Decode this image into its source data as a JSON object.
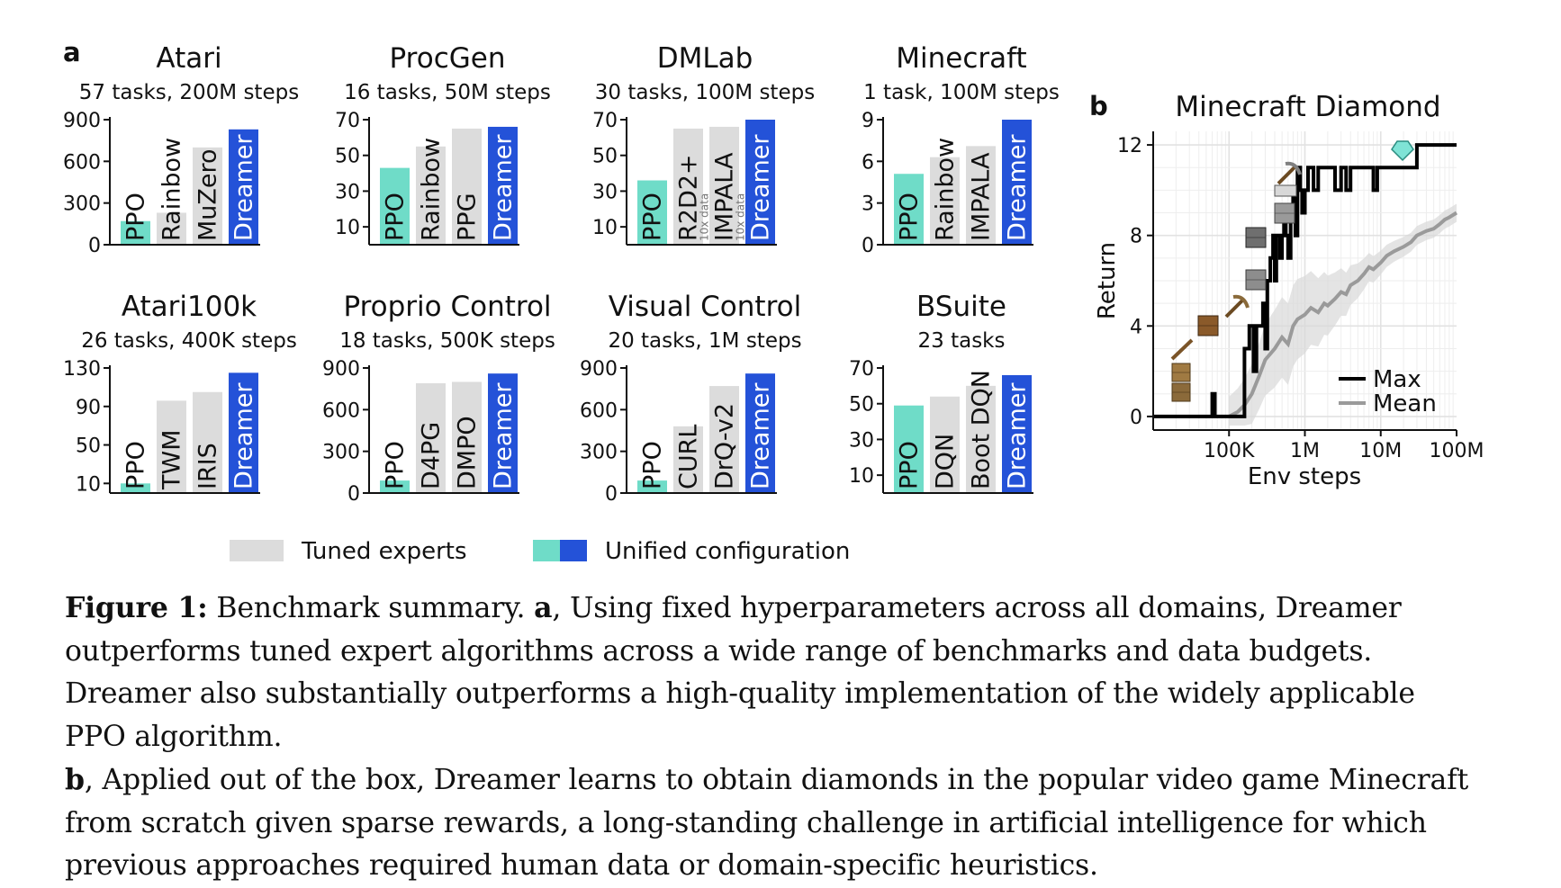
{
  "panel_labels": {
    "a": "a",
    "b": "b"
  },
  "colors": {
    "tuned": "#dcdcdc",
    "ppo": "#6fdcc8",
    "dreamer": "#2452d8",
    "max_line": "#000000",
    "mean_line": "#9a9a9a",
    "mean_band": "#d9d9d9"
  },
  "legend": {
    "tuned_label": "Tuned experts",
    "unified_label": "Unified configuration"
  },
  "caption": {
    "figure_label": "Figure 1:",
    "intro": " Benchmark summary. ",
    "a_label": "a",
    "a_text": ", Using fixed hyperparameters across all domains, Dreamer outperforms tuned expert algorithms across a wide range of benchmarks and data budgets. Dreamer also substantially outperforms a high-quality implementation of the widely applicable PPO algorithm.",
    "b_label": "b",
    "b_text": ", Applied out of the box, Dreamer learns to obtain diamonds in the popular video game Minecraft from scratch given sparse rewards, a long-standing challenge in artificial intelligence for which previous approaches required human data or domain-specific heuristics."
  },
  "chart_data": [
    {
      "type": "bar",
      "title": "Atari",
      "subtitle": "57 tasks, 200M steps",
      "ylim": [
        0,
        900
      ],
      "yticks": [
        0,
        300,
        600,
        900
      ],
      "bars": [
        {
          "label": "PPO",
          "value": 170,
          "kind": "ppo"
        },
        {
          "label": "Rainbow",
          "value": 230,
          "kind": "tuned"
        },
        {
          "label": "MuZero",
          "value": 700,
          "kind": "tuned"
        },
        {
          "label": "Dreamer",
          "value": 830,
          "kind": "dreamer"
        }
      ]
    },
    {
      "type": "bar",
      "title": "ProcGen",
      "subtitle": "16 tasks, 50M steps",
      "ylim": [
        0,
        70
      ],
      "yticks": [
        10,
        30,
        50,
        70
      ],
      "bars": [
        {
          "label": "PPO",
          "value": 43,
          "kind": "ppo"
        },
        {
          "label": "Rainbow",
          "value": 55,
          "kind": "tuned"
        },
        {
          "label": "PPG",
          "value": 65,
          "kind": "tuned"
        },
        {
          "label": "Dreamer",
          "value": 66,
          "kind": "dreamer"
        }
      ]
    },
    {
      "type": "bar",
      "title": "DMLab",
      "subtitle": "30 tasks, 100M steps",
      "ylim": [
        0,
        70
      ],
      "yticks": [
        10,
        30,
        50,
        70
      ],
      "bars": [
        {
          "label": "PPO",
          "value": 36,
          "kind": "ppo"
        },
        {
          "label": "R2D2+",
          "sublabel": "10x data",
          "value": 65,
          "kind": "tuned"
        },
        {
          "label": "IMPALA",
          "sublabel": "10x data",
          "value": 66,
          "kind": "tuned"
        },
        {
          "label": "Dreamer",
          "value": 70,
          "kind": "dreamer"
        }
      ]
    },
    {
      "type": "bar",
      "title": "Minecraft",
      "subtitle": "1 task, 100M steps",
      "ylim": [
        0,
        9
      ],
      "yticks": [
        0,
        3,
        6,
        9
      ],
      "bars": [
        {
          "label": "PPO",
          "value": 5.1,
          "kind": "ppo"
        },
        {
          "label": "Rainbow",
          "value": 6.3,
          "kind": "tuned"
        },
        {
          "label": "IMPALA",
          "value": 7.1,
          "kind": "tuned"
        },
        {
          "label": "Dreamer",
          "value": 9,
          "kind": "dreamer"
        }
      ]
    },
    {
      "type": "bar",
      "title": "Atari100k",
      "subtitle": "26 tasks, 400K steps",
      "ylim": [
        0,
        130
      ],
      "yticks": [
        10,
        50,
        90,
        130
      ],
      "bars": [
        {
          "label": "PPO",
          "value": 10,
          "kind": "ppo"
        },
        {
          "label": "TWM",
          "value": 96,
          "kind": "tuned"
        },
        {
          "label": "IRIS",
          "value": 105,
          "kind": "tuned"
        },
        {
          "label": "Dreamer",
          "value": 125,
          "kind": "dreamer"
        }
      ]
    },
    {
      "type": "bar",
      "title": "Proprio Control",
      "subtitle": "18 tasks, 500K steps",
      "ylim": [
        0,
        900
      ],
      "yticks": [
        0,
        300,
        600,
        900
      ],
      "bars": [
        {
          "label": "PPO",
          "value": 90,
          "kind": "ppo"
        },
        {
          "label": "D4PG",
          "value": 790,
          "kind": "tuned"
        },
        {
          "label": "DMPO",
          "value": 800,
          "kind": "tuned"
        },
        {
          "label": "Dreamer",
          "value": 860,
          "kind": "dreamer"
        }
      ]
    },
    {
      "type": "bar",
      "title": "Visual Control",
      "subtitle": "20 tasks, 1M steps",
      "ylim": [
        0,
        900
      ],
      "yticks": [
        0,
        300,
        600,
        900
      ],
      "bars": [
        {
          "label": "PPO",
          "value": 90,
          "kind": "ppo"
        },
        {
          "label": "CURL",
          "value": 480,
          "kind": "tuned"
        },
        {
          "label": "DrQ-v2",
          "value": 770,
          "kind": "tuned"
        },
        {
          "label": "Dreamer",
          "value": 860,
          "kind": "dreamer"
        }
      ]
    },
    {
      "type": "bar",
      "title": "BSuite",
      "subtitle": "23 tasks",
      "ylim": [
        0,
        70
      ],
      "yticks": [
        10,
        30,
        50,
        70
      ],
      "bars": [
        {
          "label": "PPO",
          "value": 49,
          "kind": "ppo"
        },
        {
          "label": "DQN",
          "value": 54,
          "kind": "tuned"
        },
        {
          "label": "Boot DQN",
          "value": 60,
          "kind": "tuned"
        },
        {
          "label": "Dreamer",
          "value": 66,
          "kind": "dreamer"
        }
      ]
    },
    {
      "type": "line",
      "title": "Minecraft Diamond",
      "xlabel": "Env steps",
      "ylabel": "Return",
      "xscale": "log",
      "xlim": [
        10000,
        100000000
      ],
      "ylim": [
        -0.6,
        12.6
      ],
      "xticks": [
        {
          "value": 100000,
          "label": "100K"
        },
        {
          "value": 1000000,
          "label": "1M"
        },
        {
          "value": 10000000,
          "label": "10M"
        },
        {
          "value": 100000000,
          "label": "100M"
        }
      ],
      "yticks": [
        0,
        4,
        8,
        12
      ],
      "grid": true,
      "legend_position": "lower-right",
      "series": [
        {
          "name": "Max",
          "color": "#000000",
          "x": [
            10000,
            50000,
            60000,
            65000,
            70000,
            90000,
            95000,
            100000,
            140000,
            160000,
            185000,
            210000,
            230000,
            260000,
            280000,
            300000,
            320000,
            350000,
            380000,
            400000,
            420000,
            440000,
            470000,
            500000,
            530000,
            560000,
            600000,
            650000,
            700000,
            750000,
            800000,
            870000,
            920000,
            1000000,
            1100000,
            1300000,
            1500000,
            1700000,
            2000000,
            2500000,
            3000000,
            3500000,
            4000000,
            5000000,
            6000000,
            7000000,
            8000000,
            9000000,
            10000000,
            12000000,
            15000000,
            20000000,
            25000000,
            30000000,
            40000000,
            60000000,
            80000000,
            100000000
          ],
          "y": [
            0,
            0,
            1,
            0,
            0,
            0,
            0,
            0,
            0,
            3,
            4,
            2,
            4,
            4,
            5,
            3,
            6,
            7,
            8,
            6,
            8,
            8,
            7,
            8,
            9,
            8,
            7,
            9,
            10,
            8,
            11,
            10,
            9,
            10,
            11,
            10,
            11,
            11,
            11,
            10,
            11,
            10,
            11,
            11,
            11,
            11,
            10,
            11,
            11,
            11,
            11,
            11,
            11,
            12,
            12,
            12,
            12,
            12
          ]
        },
        {
          "name": "Mean",
          "color": "#9a9a9a",
          "x": [
            100000,
            130000,
            160000,
            200000,
            250000,
            300000,
            400000,
            500000,
            600000,
            700000,
            800000,
            1000000,
            1200000,
            1500000,
            1800000,
            2000000,
            2500000,
            3000000,
            3500000,
            4000000,
            5000000,
            6000000,
            7000000,
            8000000,
            10000000,
            12000000,
            15000000,
            20000000,
            25000000,
            30000000,
            40000000,
            50000000,
            60000000,
            70000000,
            80000000,
            100000000
          ],
          "y": [
            0,
            0.2,
            0.5,
            1,
            1.8,
            2.5,
            3,
            3.5,
            3.2,
            4,
            4.3,
            4.5,
            4.8,
            4.6,
            5,
            4.9,
            5.2,
            5.5,
            5.4,
            5.8,
            6,
            6.3,
            6.6,
            6.5,
            6.8,
            7.1,
            7.3,
            7.5,
            7.7,
            8,
            8.2,
            8.3,
            8.5,
            8.7,
            8.8,
            9
          ]
        }
      ],
      "icons": [
        "log-icon",
        "planks-icon",
        "crafting-table-icon",
        "wooden-pickaxe-icon",
        "cobblestone-icon",
        "furnace-icon",
        "stone-pickaxe-icon",
        "iron-ingot-icon",
        "iron-pickaxe-icon",
        "diamond-icon"
      ]
    }
  ]
}
